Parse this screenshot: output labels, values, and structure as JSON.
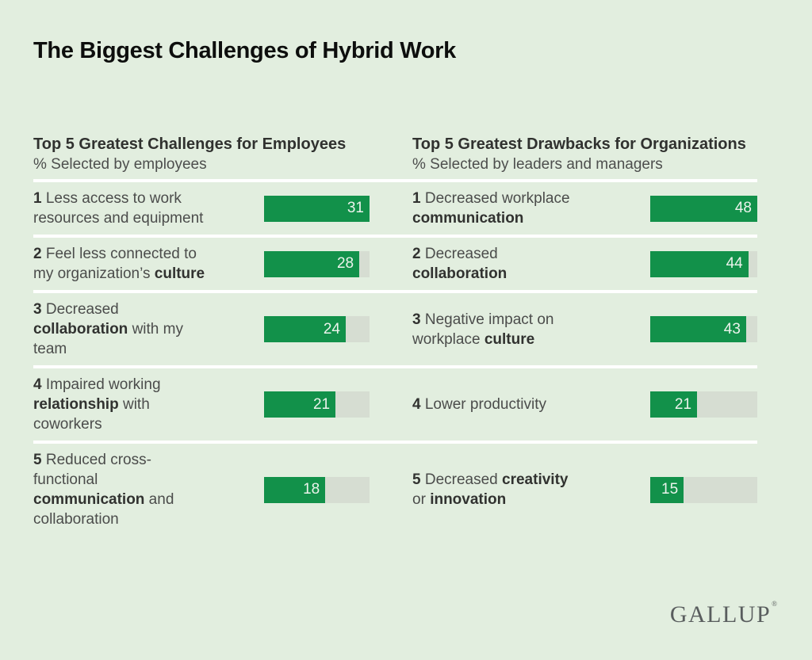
{
  "title": "The Biggest Challenges of Hybrid Work",
  "logo": {
    "text": "GALLUP",
    "mark": "®"
  },
  "colors": {
    "background": "#e2eedf",
    "bar_fill": "#12914a",
    "bar_track": "#d6ddd2",
    "separator": "#ffffff",
    "value_text": "#ecf3ec"
  },
  "chart_data": [
    {
      "type": "bar",
      "title": "Top 5 Greatest Challenges for Employees",
      "subtitle": "% Selected by employees",
      "categories": [
        "Less access to work resources and equipment",
        "Feel less connected to my organization’s culture",
        "Decreased collaboration with my team",
        "Impaired working relationship with coworkers",
        "Reduced cross-functional communication and collaboration"
      ],
      "values": [
        31,
        28,
        24,
        21,
        18
      ],
      "xlim": [
        0,
        31
      ],
      "bar_color": "#12914a",
      "track_color": "#d6ddd2",
      "items": [
        {
          "rank": "1",
          "value": 31,
          "segments": [
            {
              "t": "Less access to work resources and equipment",
              "b": false
            }
          ]
        },
        {
          "rank": "2",
          "value": 28,
          "segments": [
            {
              "t": "Feel less connected to my organization’s ",
              "b": false
            },
            {
              "t": "culture",
              "b": true
            }
          ]
        },
        {
          "rank": "3",
          "value": 24,
          "segments": [
            {
              "t": "Decreased ",
              "b": false
            },
            {
              "t": "collaboration",
              "b": true
            },
            {
              "t": " with my team",
              "b": false
            }
          ]
        },
        {
          "rank": "4",
          "value": 21,
          "segments": [
            {
              "t": "Impaired working ",
              "b": false
            },
            {
              "t": "relationship",
              "b": true
            },
            {
              "t": " with coworkers",
              "b": false
            }
          ]
        },
        {
          "rank": "5",
          "value": 18,
          "segments": [
            {
              "t": "Reduced cross-functional ",
              "b": false
            },
            {
              "t": "communication",
              "b": true
            },
            {
              "t": " and collaboration",
              "b": false
            }
          ]
        }
      ]
    },
    {
      "type": "bar",
      "title": "Top 5 Greatest Drawbacks for Organizations",
      "subtitle": "% Selected by leaders and managers",
      "categories": [
        "Decreased workplace communication",
        "Decreased collaboration",
        "Negative impact on workplace culture",
        "Lower productivity",
        "Decreased creativity or innovation"
      ],
      "values": [
        48,
        44,
        43,
        21,
        15
      ],
      "xlim": [
        0,
        48
      ],
      "bar_color": "#12914a",
      "track_color": "#d6ddd2",
      "items": [
        {
          "rank": "1",
          "value": 48,
          "segments": [
            {
              "t": "Decreased workplace ",
              "b": false
            },
            {
              "t": "communication",
              "b": true
            }
          ]
        },
        {
          "rank": "2",
          "value": 44,
          "segments": [
            {
              "t": "Decreased ",
              "b": false
            },
            {
              "t": "collaboration",
              "b": true
            }
          ]
        },
        {
          "rank": "3",
          "value": 43,
          "segments": [
            {
              "t": "Negative impact on workplace ",
              "b": false
            },
            {
              "t": "culture",
              "b": true
            }
          ]
        },
        {
          "rank": "4",
          "value": 21,
          "segments": [
            {
              "t": "Lower productivity",
              "b": false
            }
          ]
        },
        {
          "rank": "5",
          "value": 15,
          "segments": [
            {
              "t": "Decreased ",
              "b": false
            },
            {
              "t": "creativity",
              "b": true
            },
            {
              "t": " or ",
              "b": false
            },
            {
              "t": "innovation",
              "b": true
            }
          ]
        }
      ]
    }
  ]
}
